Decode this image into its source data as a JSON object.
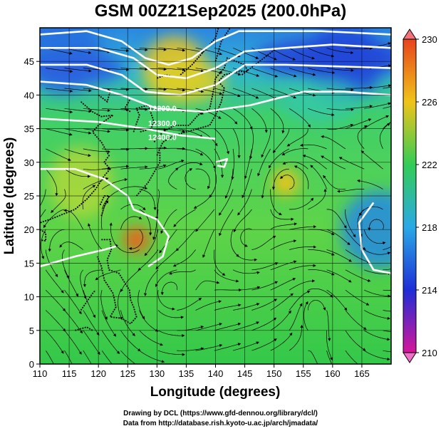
{
  "title": "GSM 00Z21Sep2025 (200.0hPa)",
  "credits": {
    "line1": "Drawing by DCL (https://www.gfd-dennou.org/library/dcl/)",
    "line2": "Data from http://database.rish.kyoto-u.ac.jp/arch/jmadata/"
  },
  "chart_data": {
    "type": "heatmap",
    "title": "GSM 00Z21Sep2025 (200.0hPa)",
    "xlabel": "Longitude (degrees)",
    "ylabel": "Latitude  (degrees)",
    "xlim": [
      110,
      170
    ],
    "ylim": [
      0,
      50
    ],
    "x_ticks": [
      110,
      115,
      120,
      125,
      130,
      135,
      140,
      145,
      150,
      155,
      160,
      165
    ],
    "y_ticks": [
      0,
      5,
      10,
      15,
      20,
      25,
      30,
      35,
      40,
      45
    ],
    "grid": true,
    "colorbar": {
      "min": 210,
      "max": 230,
      "ticks": [
        210,
        214,
        218,
        222,
        226,
        230
      ],
      "colors": [
        "#d6169a",
        "#1e2ed6",
        "#2aa9e6",
        "#33cc55",
        "#f0c419",
        "#e8431c"
      ]
    },
    "contour_labels": [
      "12200.0",
      "12300.0",
      "12400.0"
    ],
    "contour_color": "#ffffff",
    "features": [
      {
        "kind": "warm-core",
        "lon": 126.5,
        "lat": 18.5,
        "value": 229
      },
      {
        "kind": "warm-core",
        "lon": 152,
        "lat": 27,
        "value": 226
      },
      {
        "kind": "warm-area",
        "lon": 133,
        "lat": 44,
        "value": 226
      },
      {
        "kind": "cold-area",
        "lon": 114,
        "lat": 46,
        "value": 216
      },
      {
        "kind": "cold-area",
        "lon": 162,
        "lat": 45,
        "value": 215
      },
      {
        "kind": "cold-area",
        "lon": 168,
        "lat": 20,
        "value": 217
      }
    ]
  }
}
